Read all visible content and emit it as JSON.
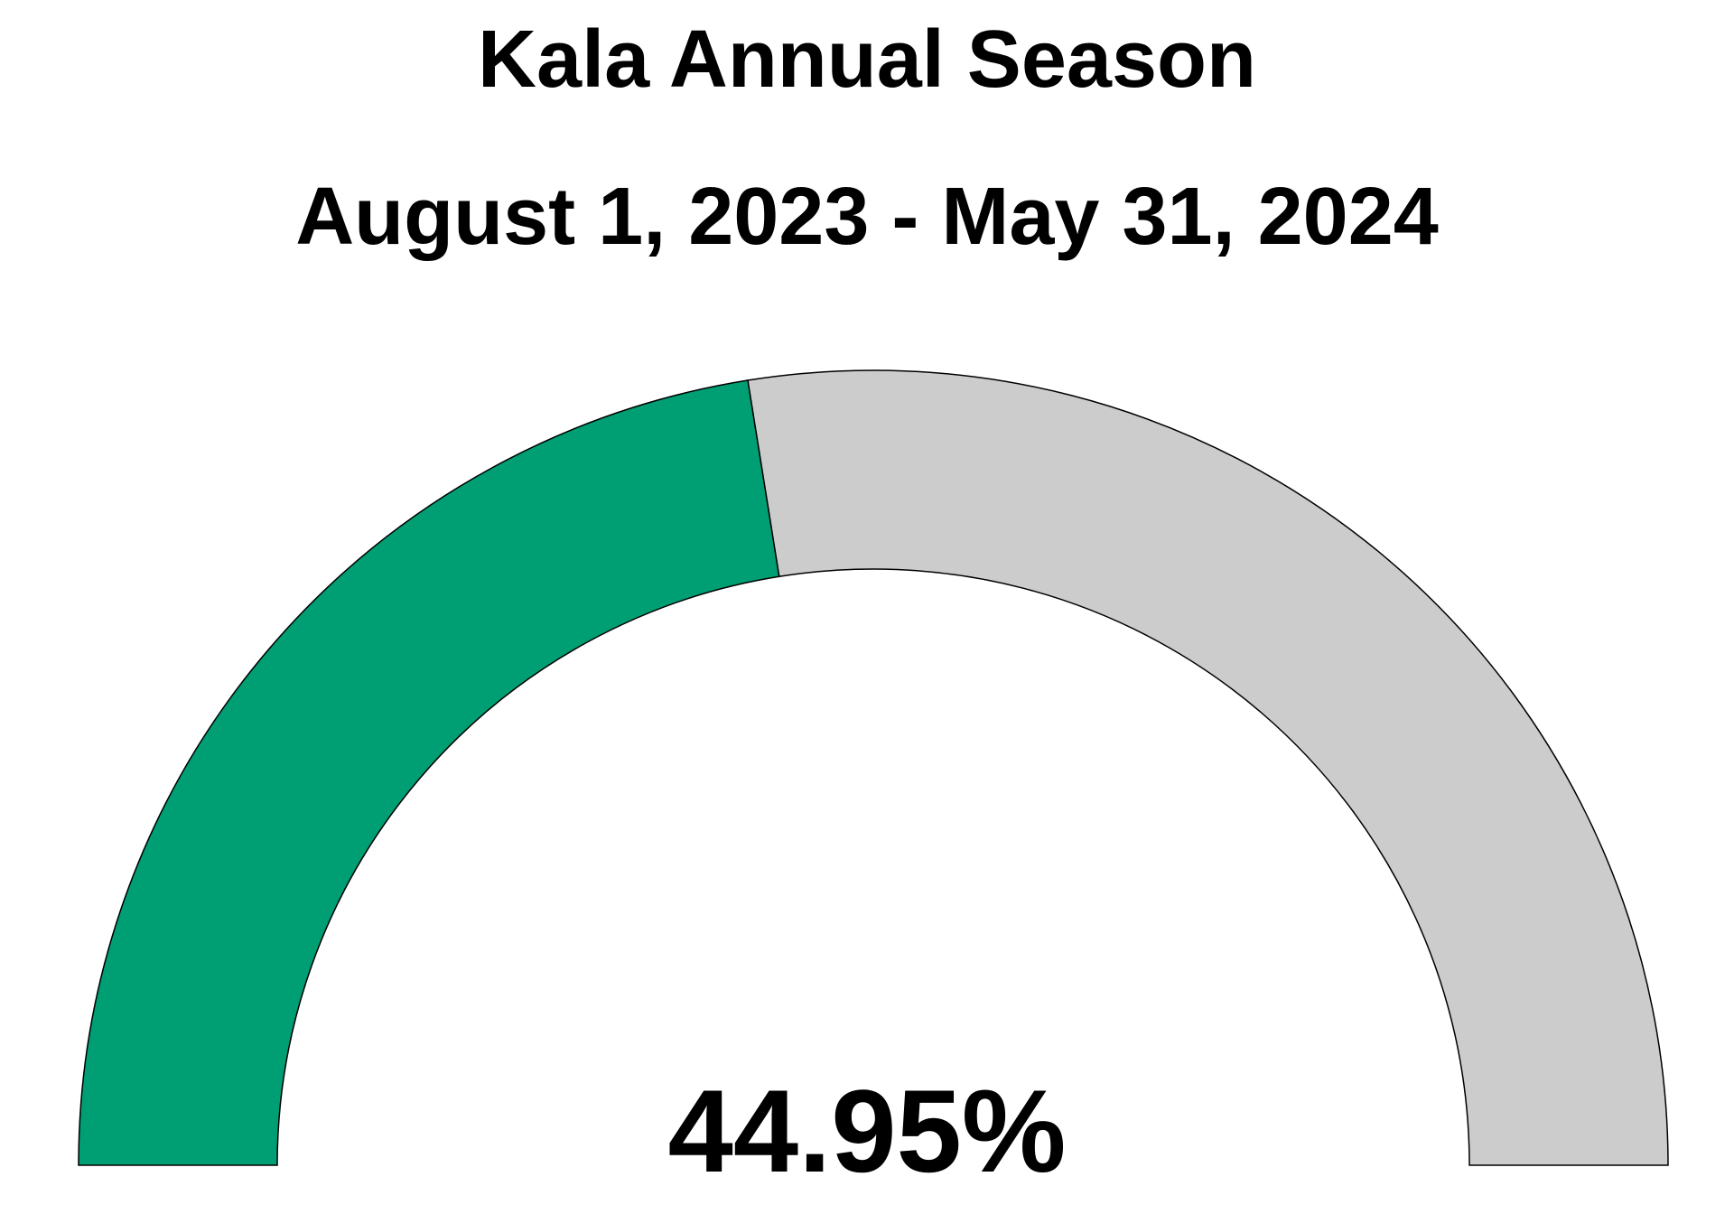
{
  "chart_data": {
    "type": "gauge",
    "title": "Kala Annual Season",
    "subtitle": "August 1, 2023 - May 31, 2024",
    "value": 44.95,
    "value_label": "44.95%",
    "range": [
      0,
      100
    ],
    "fill_color": "#009E73",
    "track_color": "#CCCCCC",
    "outline_color": "#000000"
  }
}
